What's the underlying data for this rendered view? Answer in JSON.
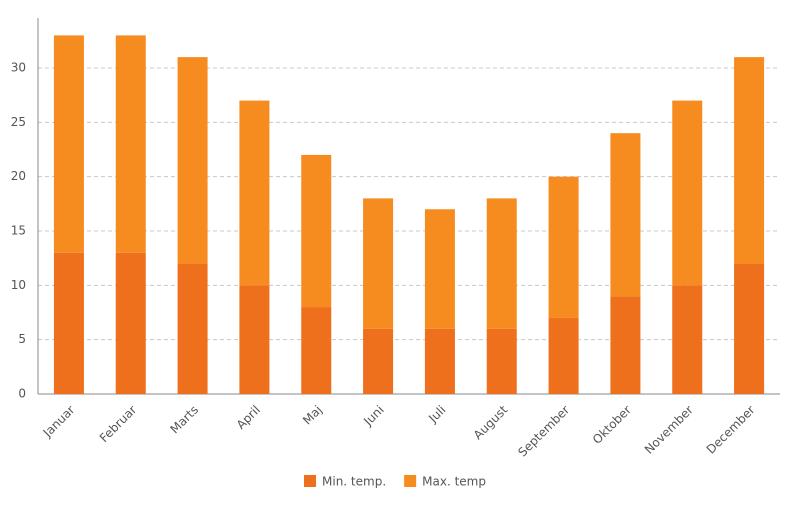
{
  "chart_data": {
    "type": "stacked-bar",
    "categories": [
      "Januar",
      "Februar",
      "Marts",
      "April",
      "Maj",
      "Juni",
      "Juli",
      "August",
      "September",
      "Oktober",
      "November",
      "December"
    ],
    "series": [
      {
        "name": "Min. temp.",
        "color": "#ee6f1c",
        "values": [
          13,
          13,
          12,
          10,
          8,
          6,
          6,
          6,
          7,
          9,
          10,
          12
        ]
      },
      {
        "name": "Max. temp",
        "color": "#f68b1f",
        "values": [
          20,
          20,
          19,
          17,
          14,
          12,
          11,
          12,
          13,
          15,
          17,
          19
        ]
      }
    ],
    "ylim": [
      0,
      34.6
    ],
    "yticks": [
      0,
      5,
      10,
      15,
      20,
      25,
      30
    ],
    "grid": true,
    "legend": "bottom"
  }
}
